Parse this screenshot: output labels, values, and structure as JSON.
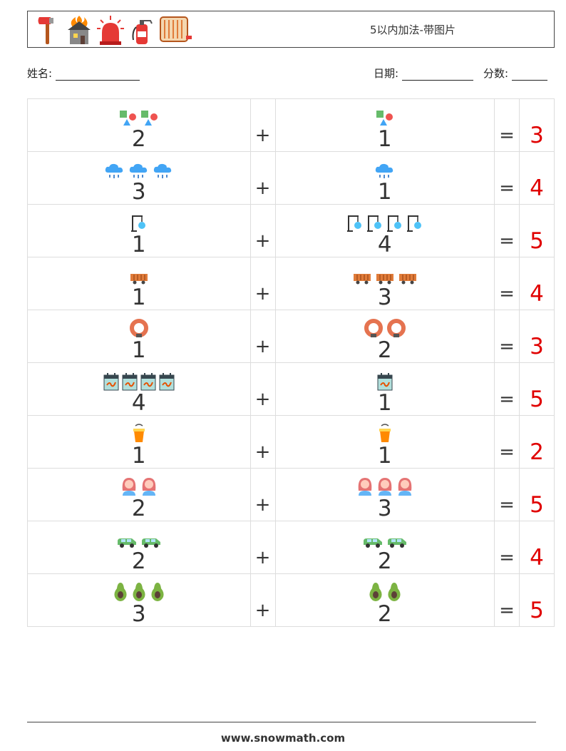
{
  "header": {
    "title": "5以内加法-带图片",
    "icons": [
      "axe-icon",
      "burning-house-icon",
      "siren-icon",
      "fire-extinguisher-icon",
      "fire-hose-icon"
    ]
  },
  "fields": {
    "name_label": "姓名:",
    "date_label": "日期:",
    "score_label": "分数:"
  },
  "operator_plus": "+",
  "operator_equals": "=",
  "rows": [
    {
      "a": 2,
      "b": 1,
      "answer": "3",
      "icon": "shapes-icon"
    },
    {
      "a": 3,
      "b": 1,
      "answer": "4",
      "icon": "rain-cloud-icon"
    },
    {
      "a": 1,
      "b": 4,
      "answer": "5",
      "icon": "hydrant-pipe-icon"
    },
    {
      "a": 1,
      "b": 3,
      "answer": "4",
      "icon": "freight-wagon-icon"
    },
    {
      "a": 1,
      "b": 2,
      "answer": "3",
      "icon": "life-ring-icon"
    },
    {
      "a": 4,
      "b": 1,
      "answer": "5",
      "icon": "calendar-note-icon"
    },
    {
      "a": 1,
      "b": 1,
      "answer": "2",
      "icon": "fire-bucket-icon"
    },
    {
      "a": 2,
      "b": 3,
      "answer": "5",
      "icon": "woman-avatar-icon"
    },
    {
      "a": 2,
      "b": 2,
      "answer": "4",
      "icon": "car-icon"
    },
    {
      "a": 3,
      "b": 2,
      "answer": "5",
      "icon": "avocado-icon"
    }
  ],
  "footer": "www.snowmath.com"
}
